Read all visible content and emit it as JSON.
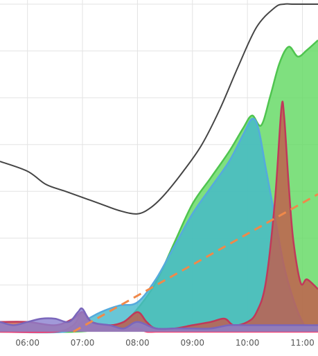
{
  "chart_data": {
    "type": "area",
    "title": "",
    "xlabel": "",
    "ylabel": "",
    "grid": true,
    "x_ticks": [
      "06:00",
      "07:00",
      "08:00",
      "09:00",
      "10:00",
      "11:00"
    ],
    "xlim": [
      "05:30",
      "11:17"
    ],
    "ylim": [
      0,
      1
    ],
    "series": [
      {
        "type": "area",
        "color": "#5fd85f",
        "stroke": "#4fc44f",
        "x": [
          "05:30",
          "06:50",
          "07:20",
          "07:45",
          "08:00",
          "08:20",
          "08:40",
          "09:00",
          "09:20",
          "09:40",
          "09:55",
          "10:05",
          "10:15",
          "10:25",
          "10:35",
          "10:45",
          "10:55",
          "11:05",
          "11:17"
        ],
        "y": [
          0.0,
          0.0,
          0.01,
          0.03,
          0.07,
          0.15,
          0.27,
          0.39,
          0.47,
          0.55,
          0.62,
          0.66,
          0.63,
          0.72,
          0.82,
          0.87,
          0.84,
          0.86,
          0.89
        ]
      },
      {
        "type": "area",
        "color": "#44b8cc",
        "stroke": "#55aadd",
        "x": [
          "05:30",
          "06:40",
          "07:00",
          "07:20",
          "07:40",
          "08:00",
          "08:20",
          "08:40",
          "09:00",
          "09:20",
          "09:40",
          "09:55",
          "10:05",
          "10:12",
          "10:20",
          "10:30",
          "10:40",
          "10:50",
          "11:00",
          "11:05",
          "11:17"
        ],
        "y": [
          0.0,
          0.0,
          0.03,
          0.06,
          0.08,
          0.09,
          0.16,
          0.26,
          0.36,
          0.44,
          0.52,
          0.6,
          0.65,
          0.62,
          0.5,
          0.35,
          0.2,
          0.1,
          0.03,
          0.02,
          0.02
        ]
      },
      {
        "type": "area",
        "color": "#ff6f8a",
        "stroke": "#ee4477",
        "x": [
          "05:30",
          "06:30",
          "06:50",
          "07:00",
          "07:10",
          "07:25",
          "07:40",
          "07:50",
          "08:00",
          "08:10",
          "08:20",
          "08:40",
          "09:00",
          "09:20",
          "09:35",
          "09:45",
          "10:00",
          "10:10",
          "10:20",
          "10:30",
          "10:37",
          "10:40",
          "10:45",
          "10:50",
          "10:58",
          "11:05",
          "11:17"
        ],
        "y": [
          0.0,
          0.0,
          0.02,
          0.06,
          0.03,
          0.02,
          0.01,
          0.01,
          0.01,
          0.0,
          0.0,
          0.0,
          0.0,
          0.0,
          0.0,
          0.0,
          0.0,
          0.0,
          0.0,
          0.0,
          0.0,
          0.0,
          0.0,
          0.0,
          0.0,
          0.0,
          0.0
        ]
      },
      {
        "type": "area",
        "color": "#c4594a",
        "stroke": "#c0395a",
        "x": [
          "05:30",
          "06:00",
          "06:30",
          "06:50",
          "07:00",
          "07:10",
          "07:30",
          "07:45",
          "08:00",
          "08:10",
          "08:20",
          "08:40",
          "09:00",
          "09:20",
          "09:35",
          "09:45",
          "10:00",
          "10:10",
          "10:20",
          "10:30",
          "10:37",
          "10:40",
          "10:45",
          "10:50",
          "10:58",
          "11:05",
          "11:17"
        ],
        "y": [
          0.03,
          0.03,
          0.02,
          0.04,
          0.06,
          0.03,
          0.02,
          0.03,
          0.06,
          0.03,
          0.01,
          0.01,
          0.02,
          0.03,
          0.04,
          0.02,
          0.03,
          0.06,
          0.15,
          0.4,
          0.68,
          0.66,
          0.45,
          0.28,
          0.15,
          0.16,
          0.13
        ]
      },
      {
        "type": "area",
        "color": "#8a7fd0",
        "stroke": "#7a66bb",
        "x": [
          "05:30",
          "05:45",
          "06:00",
          "06:15",
          "06:30",
          "06:45",
          "06:55",
          "07:00",
          "07:10",
          "07:30",
          "07:45",
          "08:00",
          "08:20",
          "08:40",
          "09:00",
          "09:20",
          "09:40",
          "10:00",
          "10:20",
          "10:40",
          "11:00",
          "11:17"
        ],
        "y": [
          0.03,
          0.02,
          0.03,
          0.04,
          0.04,
          0.03,
          0.06,
          0.07,
          0.03,
          0.02,
          0.01,
          0.03,
          0.01,
          0.01,
          0.01,
          0.01,
          0.02,
          0.02,
          0.02,
          0.02,
          0.02,
          0.02
        ]
      },
      {
        "type": "line",
        "color": "#444444",
        "x": [
          "05:30",
          "06:00",
          "06:20",
          "06:40",
          "07:00",
          "07:20",
          "07:40",
          "08:00",
          "08:15",
          "08:30",
          "08:50",
          "09:10",
          "09:30",
          "09:50",
          "10:10",
          "10:30",
          "10:40",
          "10:50",
          "11:00",
          "11:17"
        ],
        "y": [
          0.52,
          0.49,
          0.45,
          0.43,
          0.41,
          0.39,
          0.37,
          0.36,
          0.38,
          0.42,
          0.49,
          0.57,
          0.68,
          0.81,
          0.93,
          0.99,
          1.0,
          1.0,
          1.0,
          1.0
        ]
      },
      {
        "type": "dashed-line",
        "color": "#f0894a",
        "x": [
          "06:50",
          "11:17"
        ],
        "y": [
          0.0,
          0.42
        ]
      }
    ]
  }
}
